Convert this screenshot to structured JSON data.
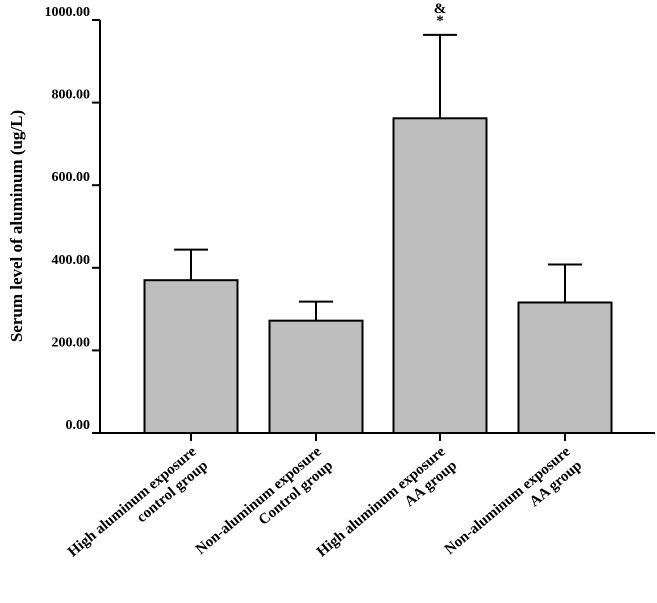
{
  "chart_data": {
    "type": "bar",
    "y_label": "Serum level of aluminum (ug/L)",
    "categories": [
      "High aluminum exposure\ncontrol group",
      "Non-aluminum exposure\nControl group",
      "High aluminum exposure\nAA group",
      "Non-aluminum exposure\nAA group"
    ],
    "values": [
      370,
      272,
      762,
      316
    ],
    "errors": [
      74,
      46,
      202,
      92
    ],
    "color": "#bebebe",
    "ylim": [
      0,
      1000
    ],
    "yticks": [
      {
        "value": 0,
        "label": "0.00"
      },
      {
        "value": 200,
        "label": "200.00"
      },
      {
        "value": 400,
        "label": "400.00"
      },
      {
        "value": 600,
        "label": "600.00"
      },
      {
        "value": 800,
        "label": "800.00"
      },
      {
        "value": 1000,
        "label": "1000.00"
      }
    ],
    "annotations": [
      "&",
      "*"
    ]
  }
}
